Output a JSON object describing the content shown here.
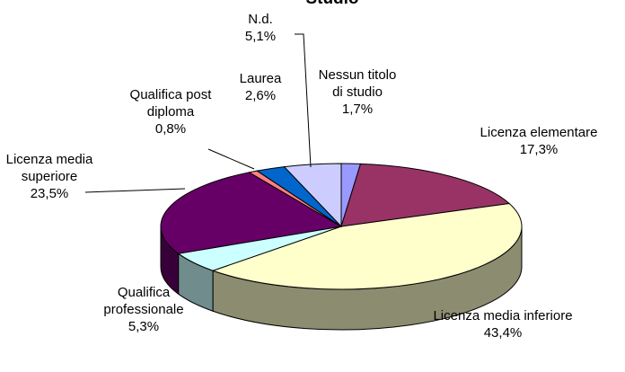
{
  "chart_data": {
    "type": "pie3d",
    "title": "Studio",
    "categories": [
      "Nessun titolo di studio",
      "Licenza elementare",
      "Licenza media inferiore",
      "Qualifica professionale",
      "Licenza media superiore",
      "Qualifica post diploma",
      "Laurea",
      "N.d."
    ],
    "values": [
      1.7,
      17.3,
      43.4,
      5.3,
      23.5,
      0.8,
      2.6,
      5.1
    ],
    "value_labels": [
      "1,7%",
      "17,3%",
      "43,4%",
      "5,3%",
      "23,5%",
      "0,8%",
      "2,6%",
      "5,1%"
    ],
    "colors": [
      "#9999ff",
      "#993366",
      "#ffffcc",
      "#ccffff",
      "#660066",
      "#ff8080",
      "#0066cc",
      "#ccccff"
    ]
  }
}
